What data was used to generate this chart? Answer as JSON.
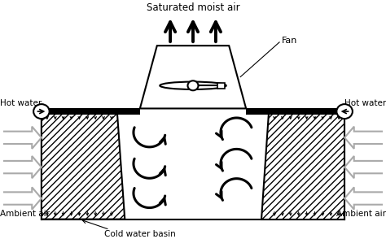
{
  "bg_color": "#ffffff",
  "black": "#000000",
  "gray": "#aaaaaa",
  "labels": {
    "saturated_moist_air": "Saturated moist air",
    "fan": "Fan",
    "hot_water_left": "Hot water",
    "hot_water_right": "Hot water",
    "ambient_air_left": "Ambient air",
    "ambient_air_right": "Ambient air",
    "cold_water_basin": "Cold water basin"
  },
  "fig_width": 4.74,
  "fig_height": 2.94,
  "dpi": 100
}
